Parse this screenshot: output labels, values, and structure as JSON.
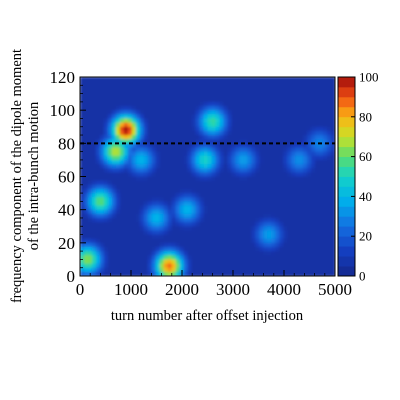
{
  "chart_data": {
    "type": "heatmap",
    "xlabel": "turn number after offset injection",
    "ylabel_lines": [
      "frequency component of the dipole moment",
      "of the intra-bunch motion"
    ],
    "xlim": [
      0,
      5000
    ],
    "ylim": [
      0,
      120
    ],
    "x_ticks": [
      0,
      1000,
      2000,
      3000,
      4000,
      5000
    ],
    "y_ticks": [
      0,
      20,
      40,
      60,
      80,
      100,
      120
    ],
    "colorbar": {
      "range": [
        0,
        100
      ],
      "ticks": [
        0,
        20,
        40,
        60,
        80,
        100
      ]
    },
    "dashed_line_y": 80,
    "features": [
      {
        "x": 150,
        "y": 10,
        "value": 65
      },
      {
        "x": 400,
        "y": 45,
        "value": 60
      },
      {
        "x": 700,
        "y": 75,
        "value": 70
      },
      {
        "x": 900,
        "y": 88,
        "value": 100
      },
      {
        "x": 1200,
        "y": 70,
        "value": 40
      },
      {
        "x": 1500,
        "y": 35,
        "value": 40
      },
      {
        "x": 1750,
        "y": 6,
        "value": 88
      },
      {
        "x": 2100,
        "y": 40,
        "value": 40
      },
      {
        "x": 2450,
        "y": 70,
        "value": 50
      },
      {
        "x": 2600,
        "y": 93,
        "value": 55
      },
      {
        "x": 3200,
        "y": 70,
        "value": 35
      },
      {
        "x": 3700,
        "y": 25,
        "value": 35
      },
      {
        "x": 4300,
        "y": 70,
        "value": 32
      },
      {
        "x": 4700,
        "y": 80,
        "value": 30
      }
    ]
  }
}
